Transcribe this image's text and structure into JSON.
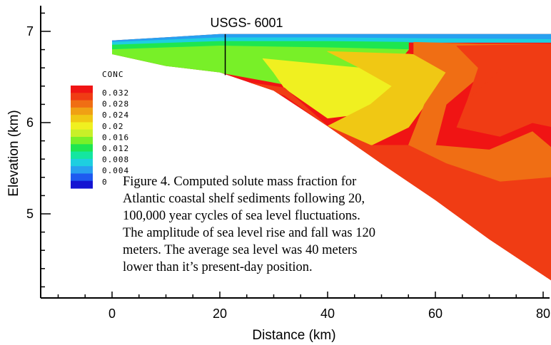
{
  "chart_data": {
    "type": "heatmap",
    "title": "",
    "xlabel": "Distance (km)",
    "ylabel": "Elevation (km)",
    "xlim": [
      -16,
      82
    ],
    "ylim": [
      4.1,
      7.3
    ],
    "x_ticks": [
      "0",
      "20",
      "40",
      "60",
      "80"
    ],
    "x_tick_values": [
      0,
      20,
      40,
      60,
      80
    ],
    "y_ticks": [
      "7",
      "6",
      "5"
    ],
    "y_tick_values": [
      7,
      6,
      5
    ],
    "well": {
      "label": "USGS- 6001",
      "x": 21,
      "y_top": 6.97,
      "y_bottom": 6.52
    },
    "colorbar": {
      "title": "CONC",
      "labels": [
        "0.032",
        "0.028",
        "0.024",
        "0.02",
        "0.016",
        "0.012",
        "0.008",
        "0.004",
        "0"
      ],
      "min": 0,
      "max": 0.034,
      "colors": [
        "#1414d2",
        "#1e5af0",
        "#28a0f0",
        "#1ecfe0",
        "#14e6a0",
        "#1ee650",
        "#78f028",
        "#c8f028",
        "#f0f020",
        "#f0c814",
        "#f0a014",
        "#f06e14",
        "#f03c14",
        "#f01414"
      ]
    },
    "domain_outline": [
      [
        0,
        6.9
      ],
      [
        0,
        6.75
      ],
      [
        10,
        6.62
      ],
      [
        20,
        6.55
      ],
      [
        30,
        6.35
      ],
      [
        40,
        5.96
      ],
      [
        50,
        5.55
      ],
      [
        60,
        5.15
      ],
      [
        70,
        4.72
      ],
      [
        82,
        4.25
      ],
      [
        82,
        6.97
      ],
      [
        60,
        6.97
      ],
      [
        40,
        6.97
      ],
      [
        20,
        6.97
      ],
      [
        0,
        6.9
      ]
    ],
    "concentration_zones": [
      {
        "conc": 0.004,
        "polygon": [
          [
            0,
            6.9
          ],
          [
            20,
            6.97
          ],
          [
            40,
            6.97
          ],
          [
            60,
            6.97
          ],
          [
            82,
            6.97
          ],
          [
            82,
            6.91
          ],
          [
            60,
            6.92
          ],
          [
            40,
            6.93
          ],
          [
            20,
            6.93
          ],
          [
            0,
            6.88
          ]
        ]
      },
      {
        "conc": 0.008,
        "polygon": [
          [
            0,
            6.88
          ],
          [
            20,
            6.93
          ],
          [
            40,
            6.93
          ],
          [
            60,
            6.92
          ],
          [
            82,
            6.91
          ],
          [
            82,
            6.88
          ],
          [
            60,
            6.88
          ],
          [
            40,
            6.89
          ],
          [
            20,
            6.89
          ],
          [
            0,
            6.85
          ]
        ]
      },
      {
        "conc": 0.012,
        "polygon": [
          [
            0,
            6.85
          ],
          [
            20,
            6.89
          ],
          [
            40,
            6.89
          ],
          [
            55,
            6.88
          ],
          [
            55,
            6.8
          ],
          [
            40,
            6.82
          ],
          [
            20,
            6.84
          ],
          [
            0,
            6.8
          ]
        ]
      },
      {
        "conc": 0.016,
        "polygon": [
          [
            0,
            6.8
          ],
          [
            20,
            6.84
          ],
          [
            40,
            6.82
          ],
          [
            55,
            6.8
          ],
          [
            50,
            6.45
          ],
          [
            42,
            6.35
          ],
          [
            32,
            6.42
          ],
          [
            20,
            6.55
          ],
          [
            10,
            6.62
          ],
          [
            0,
            6.75
          ]
        ]
      },
      {
        "conc": 0.02,
        "polygon": [
          [
            28,
            6.7
          ],
          [
            42,
            6.62
          ],
          [
            55,
            6.55
          ],
          [
            56,
            6.3
          ],
          [
            50,
            6.12
          ],
          [
            40,
            6.05
          ],
          [
            32,
            6.38
          ],
          [
            30,
            6.55
          ]
        ]
      },
      {
        "conc": 0.024,
        "polygon": [
          [
            40,
            6.78
          ],
          [
            55,
            6.75
          ],
          [
            65,
            6.7
          ],
          [
            60,
            6.35
          ],
          [
            55,
            5.95
          ],
          [
            48,
            5.75
          ],
          [
            40,
            5.96
          ],
          [
            48,
            6.2
          ],
          [
            52,
            6.4
          ],
          [
            46,
            6.6
          ]
        ]
      },
      {
        "conc": 0.028,
        "polygon": [
          [
            56,
            6.88
          ],
          [
            68,
            6.86
          ],
          [
            82,
            6.86
          ],
          [
            82,
            6.72
          ],
          [
            70,
            6.6
          ],
          [
            62,
            6.2
          ],
          [
            60,
            5.75
          ],
          [
            70,
            5.7
          ],
          [
            78,
            5.9
          ],
          [
            82,
            5.7
          ],
          [
            82,
            5.4
          ],
          [
            72,
            5.35
          ],
          [
            62,
            5.55
          ],
          [
            55,
            5.75
          ],
          [
            58,
            6.2
          ],
          [
            62,
            6.55
          ],
          [
            56,
            6.75
          ]
        ]
      },
      {
        "conc": 0.032,
        "polygon": [
          [
            64,
            6.84
          ],
          [
            82,
            6.86
          ],
          [
            82,
            6.74
          ],
          [
            72,
            6.58
          ],
          [
            66,
            6.25
          ],
          [
            64,
            5.95
          ],
          [
            72,
            5.85
          ],
          [
            78,
            6.0
          ],
          [
            82,
            5.95
          ],
          [
            82,
            6.74
          ],
          [
            72,
            6.58
          ],
          [
            66,
            6.25
          ],
          [
            68,
            6.6
          ]
        ]
      },
      {
        "conc": 0.032,
        "polygon": [
          [
            24,
            6.45
          ],
          [
            32,
            6.3
          ],
          [
            40,
            5.96
          ],
          [
            50,
            5.55
          ],
          [
            60,
            5.15
          ],
          [
            70,
            4.72
          ],
          [
            82,
            4.25
          ],
          [
            82,
            5.4
          ],
          [
            72,
            5.35
          ],
          [
            62,
            5.55
          ],
          [
            55,
            5.75
          ],
          [
            48,
            5.75
          ],
          [
            40,
            5.96
          ],
          [
            32,
            6.38
          ]
        ]
      }
    ],
    "caption_lines": [
      "Figure 4. Computed solute mass fraction for",
      "Atlantic coastal shelf sediments following 20,",
      "100,000 year cycles of sea level fluctuations.",
      "The amplitude of sea level rise and fall was 120",
      "meters. The average sea level was 40 meters",
      "lower than it’s present-day position."
    ]
  }
}
